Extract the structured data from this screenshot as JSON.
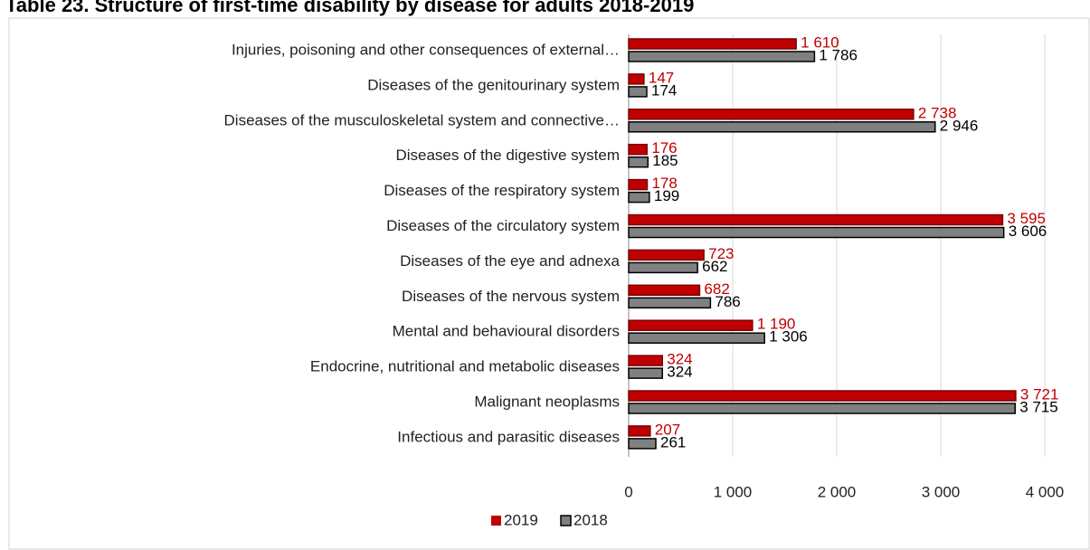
{
  "chart_data": {
    "type": "bar",
    "orientation": "horizontal",
    "title": "Table 23. Structure of first-time disability by disease for adults 2018-2019",
    "categories": [
      "Injuries, poisoning and other consequences of external…",
      "Diseases of the genitourinary system",
      "Diseases of the musculoskeletal system and connective…",
      "Diseases of the digestive system",
      "Diseases of the respiratory system",
      "Diseases of the circulatory system",
      "Diseases of the eye and adnexa",
      "Diseases of the nervous system",
      "Mental and behavioural disorders",
      "Endocrine, nutritional and metabolic diseases",
      "Malignant neoplasms",
      "Infectious and parasitic diseases"
    ],
    "series": [
      {
        "name": "2019",
        "color": "#c00000",
        "values": [
          1610,
          147,
          2738,
          176,
          178,
          3595,
          723,
          682,
          1190,
          324,
          3721,
          207
        ],
        "value_labels": [
          "1 610",
          "147",
          "2 738",
          "176",
          "178",
          "3 595",
          "723",
          "682",
          "1 190",
          "324",
          "3 721",
          "207"
        ]
      },
      {
        "name": "2018",
        "color": "#808080",
        "values": [
          1786,
          174,
          2946,
          185,
          199,
          3606,
          662,
          786,
          1306,
          324,
          3715,
          261
        ],
        "value_labels": [
          "1 786",
          "174",
          "2 946",
          "185",
          "199",
          "3 606",
          "662",
          "786",
          "1 306",
          "324",
          "3 715",
          "261"
        ]
      }
    ],
    "xlim": [
      0,
      4000
    ],
    "xticks": [
      0,
      {
        "value": 1000,
        "label": "1 000"
      },
      {
        "value": 2000,
        "label": "2 000"
      },
      {
        "value": 3000,
        "label": "3 000"
      },
      {
        "value": 4000,
        "label": "4 000"
      }
    ],
    "grid": true,
    "legend": "bottom"
  }
}
